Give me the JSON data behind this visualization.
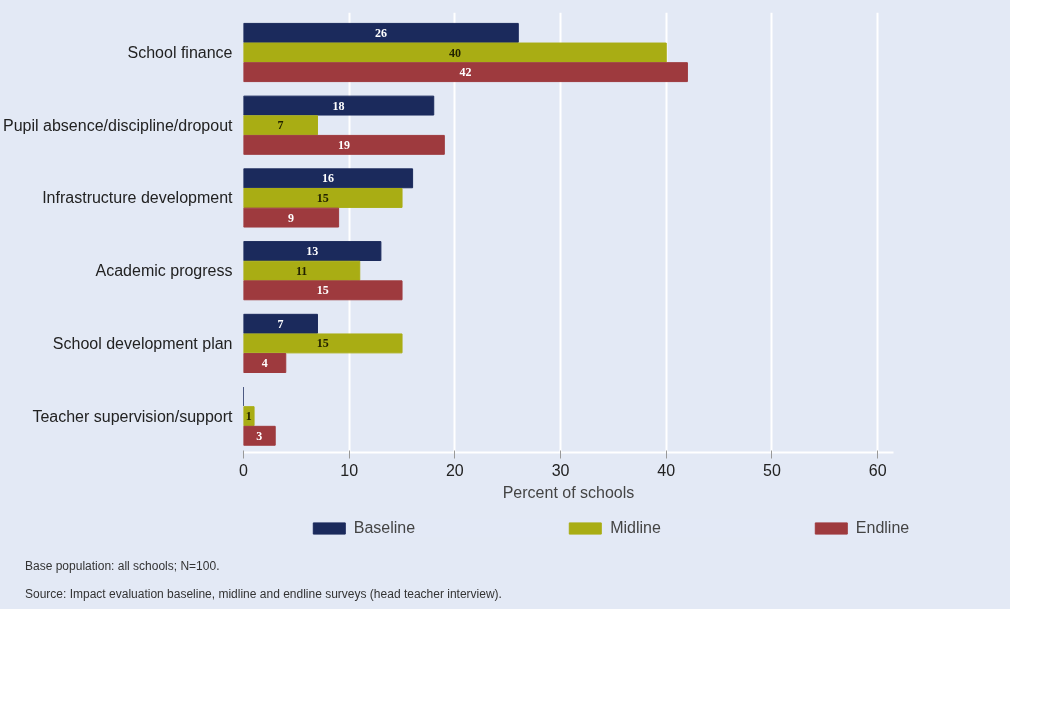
{
  "chart_data": {
    "type": "bar",
    "orientation": "horizontal",
    "categories": [
      "School finance",
      "Pupil absence/discipline/dropout",
      "Infrastructure development",
      "Academic progress",
      "School development plan",
      "Teacher supervision/support"
    ],
    "series": [
      {
        "name": "Baseline",
        "color": "#1b2a5c",
        "values": [
          26,
          18,
          16,
          13,
          7,
          0
        ],
        "value_labels": [
          "26",
          "18",
          "16",
          "13",
          "7",
          null
        ]
      },
      {
        "name": "Midline",
        "color": "#a9ad14",
        "values": [
          40,
          7,
          15,
          11,
          15,
          1
        ],
        "value_labels": [
          "40",
          "7",
          "15",
          "11",
          "15",
          "1"
        ]
      },
      {
        "name": "Endline",
        "color": "#9e3a3e",
        "values": [
          42,
          19,
          9,
          15,
          4,
          3
        ],
        "value_labels": [
          "42",
          "19",
          "9",
          "15",
          "4",
          "3"
        ]
      }
    ],
    "xlabel": "Percent of schools",
    "xlim": [
      0,
      61.5
    ],
    "xticks": [
      0,
      10,
      20,
      30,
      40,
      50,
      60
    ],
    "grid": "x",
    "legend": "bottom",
    "annotations": [
      "Base population: all schools; N=100.",
      "Source: Impact evaluation baseline, midline and endline surveys (head teacher interview)."
    ]
  }
}
